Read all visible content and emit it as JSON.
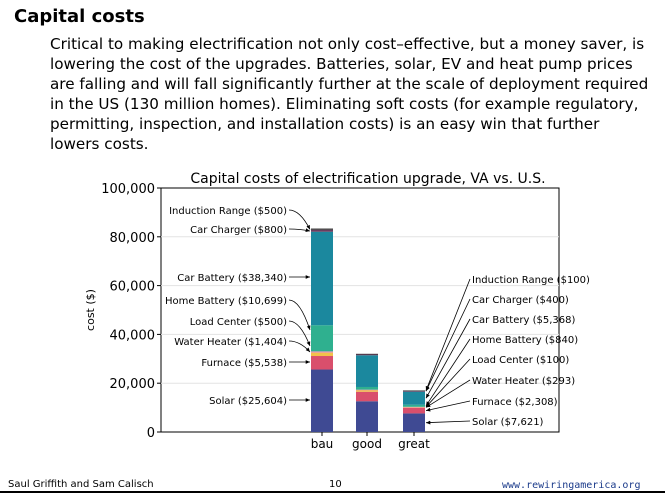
{
  "slide": {
    "title": "Capital costs",
    "body": "Critical to making electrification not only cost–effective, but a money saver, is lowering the cost of the upgrades. Batteries, solar, EV and heat pump prices are falling and will fall significantly further at the scale of deployment required in the US (130 million homes). Eliminating soft costs (for example regulatory, permitting, inspection, and installation costs) is an easy win that further lowers costs."
  },
  "footer": {
    "authors": "Saul Griffith and Sam Calisch",
    "page": "10",
    "url": "www.rewiringamerica.org"
  },
  "chart_data": {
    "type": "bar",
    "stacked": true,
    "title": "Capital costs of electrification upgrade, VA vs. U.S.",
    "xlabel": "",
    "ylabel": "cost ($)",
    "ylim": [
      0,
      100000
    ],
    "yticks": [
      "0",
      "20,000",
      "40,000",
      "60,000",
      "80,000",
      "100,000"
    ],
    "categories": [
      "bau",
      "good",
      "great"
    ],
    "series": [
      {
        "key": "solar",
        "color": "#3f4a93",
        "values": [
          25604,
          12600,
          7621
        ]
      },
      {
        "key": "furnace",
        "color": "#d94f6c",
        "values": [
          5538,
          3900,
          2308
        ]
      },
      {
        "key": "water_heater",
        "color": "#f2c14a",
        "values": [
          1404,
          700,
          293
        ]
      },
      {
        "key": "load_center",
        "color": "#e98bb8",
        "values": [
          500,
          150,
          100
        ]
      },
      {
        "key": "home_battery",
        "color": "#2fb08f",
        "values": [
          10699,
          1100,
          840
        ]
      },
      {
        "key": "car_battery",
        "color": "#1b889e",
        "values": [
          38340,
          13000,
          5368
        ]
      },
      {
        "key": "car_charger",
        "color": "#6b3d5f",
        "values": [
          800,
          500,
          400
        ]
      },
      {
        "key": "induction_range",
        "color": "#333333",
        "values": [
          500,
          100,
          100
        ]
      }
    ],
    "annotations": {
      "bau": [
        {
          "series": "induction_range",
          "label": "Induction Range ($500)"
        },
        {
          "series": "car_charger",
          "label": "Car Charger ($800)"
        },
        {
          "series": "car_battery",
          "label": "Car Battery ($38,340)"
        },
        {
          "series": "home_battery",
          "label": "Home Battery ($10,699)"
        },
        {
          "series": "load_center",
          "label": "Load Center ($500)"
        },
        {
          "series": "water_heater",
          "label": "Water Heater ($1,404)"
        },
        {
          "series": "furnace",
          "label": "Furnace ($5,538)"
        },
        {
          "series": "solar",
          "label": "Solar ($25,604)"
        }
      ],
      "great": [
        {
          "series": "induction_range",
          "label": "Induction Range ($100)"
        },
        {
          "series": "car_charger",
          "label": "Car Charger ($400)"
        },
        {
          "series": "car_battery",
          "label": "Car Battery ($5,368)"
        },
        {
          "series": "home_battery",
          "label": "Home Battery ($840)"
        },
        {
          "series": "load_center",
          "label": "Load Center ($100)"
        },
        {
          "series": "water_heater",
          "label": "Water Heater ($293)"
        },
        {
          "series": "furnace",
          "label": "Furnace ($2,308)"
        },
        {
          "series": "solar",
          "label": "Solar ($7,621)"
        }
      ]
    }
  }
}
